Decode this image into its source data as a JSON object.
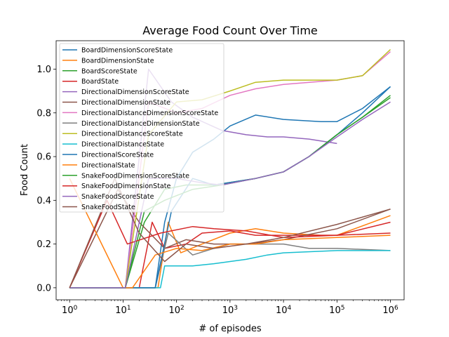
{
  "chart_data": {
    "type": "line",
    "title": "Average Food Count Over Time",
    "xlabel": "# of episodes",
    "ylabel": "Food Count",
    "xscale": "log",
    "xlim": [
      0.56,
      1800000
    ],
    "ylim": [
      -0.055,
      1.13
    ],
    "xticks": [
      {
        "value": 1,
        "base": "10",
        "exp": "0"
      },
      {
        "value": 10,
        "base": "10",
        "exp": "1"
      },
      {
        "value": 100,
        "base": "10",
        "exp": "2"
      },
      {
        "value": 1000,
        "base": "10",
        "exp": "3"
      },
      {
        "value": 10000,
        "base": "10",
        "exp": "4"
      },
      {
        "value": 100000,
        "base": "10",
        "exp": "5"
      },
      {
        "value": 1000000,
        "base": "10",
        "exp": "6"
      }
    ],
    "yticks": [
      {
        "value": 0.0,
        "label": "0.0"
      },
      {
        "value": 0.2,
        "label": "0.2"
      },
      {
        "value": 0.4,
        "label": "0.4"
      },
      {
        "value": 0.6,
        "label": "0.6"
      },
      {
        "value": 0.8,
        "label": "0.8"
      },
      {
        "value": 1.0,
        "label": "1.0"
      }
    ],
    "legend_position": "upper-left",
    "series": [
      {
        "name": "BoardDimensionScoreState",
        "color": "#1f77b4",
        "points": [
          [
            1,
            0
          ],
          [
            40,
            0
          ],
          [
            60,
            0.3
          ],
          [
            100,
            0.5
          ],
          [
            200,
            0.62
          ],
          [
            500,
            0.68
          ],
          [
            1000,
            0.74
          ],
          [
            3000,
            0.79
          ],
          [
            10000,
            0.77
          ],
          [
            50000,
            0.76
          ],
          [
            100000,
            0.76
          ],
          [
            300000,
            0.82
          ],
          [
            1000000,
            0.92
          ]
        ]
      },
      {
        "name": "BoardDimensionState",
        "color": "#ff7f0e",
        "points": [
          [
            1,
            0
          ],
          [
            45,
            0
          ],
          [
            70,
            0.3
          ],
          [
            120,
            0.16
          ],
          [
            300,
            0.2
          ],
          [
            1000,
            0.25
          ],
          [
            3000,
            0.27
          ],
          [
            10000,
            0.25
          ],
          [
            50000,
            0.24
          ],
          [
            100000,
            0.24
          ],
          [
            1000000,
            0.33
          ]
        ]
      },
      {
        "name": "BoardScoreState",
        "color": "#2ca02c",
        "points": [
          [
            1,
            0
          ],
          [
            11,
            0
          ],
          [
            25,
            0.3
          ],
          [
            60,
            0.45
          ],
          [
            150,
            0.47
          ],
          [
            500,
            0.47
          ],
          [
            3000,
            0.5
          ],
          [
            10000,
            0.53
          ],
          [
            30000,
            0.6
          ],
          [
            100000,
            0.7
          ],
          [
            300000,
            0.78
          ],
          [
            1000000,
            0.87
          ]
        ]
      },
      {
        "name": "BoardState",
        "color": "#d62728",
        "points": [
          [
            1,
            0
          ],
          [
            20,
            0
          ],
          [
            35,
            0.3
          ],
          [
            60,
            0.18
          ],
          [
            150,
            0.2
          ],
          [
            300,
            0.25
          ],
          [
            1000,
            0.26
          ],
          [
            3000,
            0.24
          ],
          [
            10000,
            0.24
          ],
          [
            100000,
            0.24
          ],
          [
            1000000,
            0.3
          ]
        ]
      },
      {
        "name": "DirectionalDimensionScoreState",
        "color": "#9467bd",
        "points": [
          [
            1,
            0
          ],
          [
            11,
            0
          ],
          [
            30,
            1.0
          ],
          [
            80,
            0.85
          ],
          [
            200,
            0.78
          ],
          [
            700,
            0.72
          ],
          [
            2000,
            0.7
          ],
          [
            5000,
            0.69
          ],
          [
            10000,
            0.69
          ],
          [
            30000,
            0.68
          ],
          [
            100000,
            0.66
          ]
        ]
      },
      {
        "name": "DirectionalDimensionState",
        "color": "#8c564b",
        "points": [
          [
            1,
            0
          ],
          [
            8,
            0.45
          ],
          [
            20,
            0.3
          ],
          [
            60,
            0.18
          ],
          [
            150,
            0.22
          ],
          [
            500,
            0.2
          ],
          [
            2000,
            0.2
          ],
          [
            10000,
            0.22
          ],
          [
            100000,
            0.27
          ],
          [
            1000000,
            0.36
          ]
        ]
      },
      {
        "name": "DirectionalDistanceDimensionScoreState",
        "color": "#e377c2",
        "points": [
          [
            1,
            0
          ],
          [
            11,
            0
          ],
          [
            30,
            0.85
          ],
          [
            100,
            0.8
          ],
          [
            300,
            0.82
          ],
          [
            1000,
            0.88
          ],
          [
            3000,
            0.91
          ],
          [
            10000,
            0.93
          ],
          [
            100000,
            0.95
          ],
          [
            300000,
            0.97
          ],
          [
            1000000,
            1.08
          ]
        ]
      },
      {
        "name": "DirectionalDistanceDimensionState",
        "color": "#7f7f7f",
        "points": [
          [
            1,
            0
          ],
          [
            40,
            0
          ],
          [
            70,
            0.25
          ],
          [
            200,
            0.15
          ],
          [
            500,
            0.18
          ],
          [
            1000,
            0.2
          ],
          [
            3000,
            0.2
          ],
          [
            10000,
            0.2
          ],
          [
            30000,
            0.18
          ],
          [
            100000,
            0.18
          ],
          [
            1000000,
            0.17
          ]
        ]
      },
      {
        "name": "DirectionalDistanceScoreState",
        "color": "#bcbd22",
        "points": [
          [
            1,
            0
          ],
          [
            11,
            0
          ],
          [
            30,
            0.7
          ],
          [
            100,
            0.85
          ],
          [
            300,
            0.86
          ],
          [
            1000,
            0.9
          ],
          [
            3000,
            0.94
          ],
          [
            10000,
            0.95
          ],
          [
            100000,
            0.95
          ],
          [
            300000,
            0.97
          ],
          [
            1000000,
            1.09
          ]
        ]
      },
      {
        "name": "DirectionalDistanceState",
        "color": "#17becf",
        "points": [
          [
            1,
            0
          ],
          [
            50,
            0
          ],
          [
            60,
            0.1
          ],
          [
            200,
            0.1
          ],
          [
            500,
            0.11
          ],
          [
            2000,
            0.13
          ],
          [
            5000,
            0.15
          ],
          [
            10000,
            0.16
          ],
          [
            100000,
            0.17
          ],
          [
            1000000,
            0.17
          ]
        ]
      },
      {
        "name": "DirectionalScoreState",
        "color": "#1f77b4",
        "points": [
          [
            1,
            0
          ],
          [
            40,
            0
          ],
          [
            80,
            0.35
          ],
          [
            200,
            0.5
          ],
          [
            500,
            0.47
          ],
          [
            3000,
            0.5
          ],
          [
            10000,
            0.53
          ],
          [
            30000,
            0.6
          ],
          [
            100000,
            0.7
          ],
          [
            300000,
            0.8
          ],
          [
            1000000,
            0.92
          ]
        ]
      },
      {
        "name": "DirectionalState",
        "color": "#ff7f0e",
        "points": [
          [
            1,
            0.5
          ],
          [
            10,
            0
          ],
          [
            15,
            0
          ],
          [
            40,
            0.15
          ],
          [
            100,
            0.18
          ],
          [
            300,
            0.17
          ],
          [
            1000,
            0.2
          ],
          [
            3000,
            0.2
          ],
          [
            10000,
            0.22
          ],
          [
            100000,
            0.23
          ],
          [
            1000000,
            0.24
          ]
        ]
      },
      {
        "name": "SnakeFoodDimensionScoreState",
        "color": "#2ca02c",
        "points": [
          [
            1,
            0
          ],
          [
            11,
            0
          ],
          [
            25,
            0.35
          ],
          [
            60,
            0.4
          ],
          [
            200,
            0.45
          ],
          [
            700,
            0.47
          ],
          [
            3000,
            0.5
          ],
          [
            10000,
            0.53
          ],
          [
            30000,
            0.6
          ],
          [
            100000,
            0.7
          ],
          [
            300000,
            0.78
          ],
          [
            1000000,
            0.88
          ]
        ]
      },
      {
        "name": "SnakeFoodDimensionState",
        "color": "#d62728",
        "points": [
          [
            1,
            0
          ],
          [
            5,
            0.4
          ],
          [
            12,
            0.2
          ],
          [
            50,
            0.25
          ],
          [
            200,
            0.28
          ],
          [
            500,
            0.27
          ],
          [
            2000,
            0.26
          ],
          [
            10000,
            0.23
          ],
          [
            100000,
            0.24
          ],
          [
            1000000,
            0.25
          ]
        ]
      },
      {
        "name": "SnakeFoodScoreState",
        "color": "#9467bd",
        "points": [
          [
            1,
            0
          ],
          [
            11,
            0
          ],
          [
            30,
            0.5
          ],
          [
            100,
            0.5
          ],
          [
            300,
            0.48
          ],
          [
            700,
            0.47
          ],
          [
            3000,
            0.5
          ],
          [
            10000,
            0.53
          ],
          [
            30000,
            0.6
          ],
          [
            100000,
            0.69
          ],
          [
            300000,
            0.77
          ],
          [
            1000000,
            0.85
          ]
        ]
      },
      {
        "name": "SnakeFoodState",
        "color": "#8c564b",
        "points": [
          [
            1,
            0
          ],
          [
            7,
            0.5
          ],
          [
            20,
            0.25
          ],
          [
            60,
            0.12
          ],
          [
            150,
            0.2
          ],
          [
            500,
            0.18
          ],
          [
            2000,
            0.2
          ],
          [
            10000,
            0.23
          ],
          [
            100000,
            0.29
          ],
          [
            1000000,
            0.36
          ]
        ]
      }
    ]
  }
}
